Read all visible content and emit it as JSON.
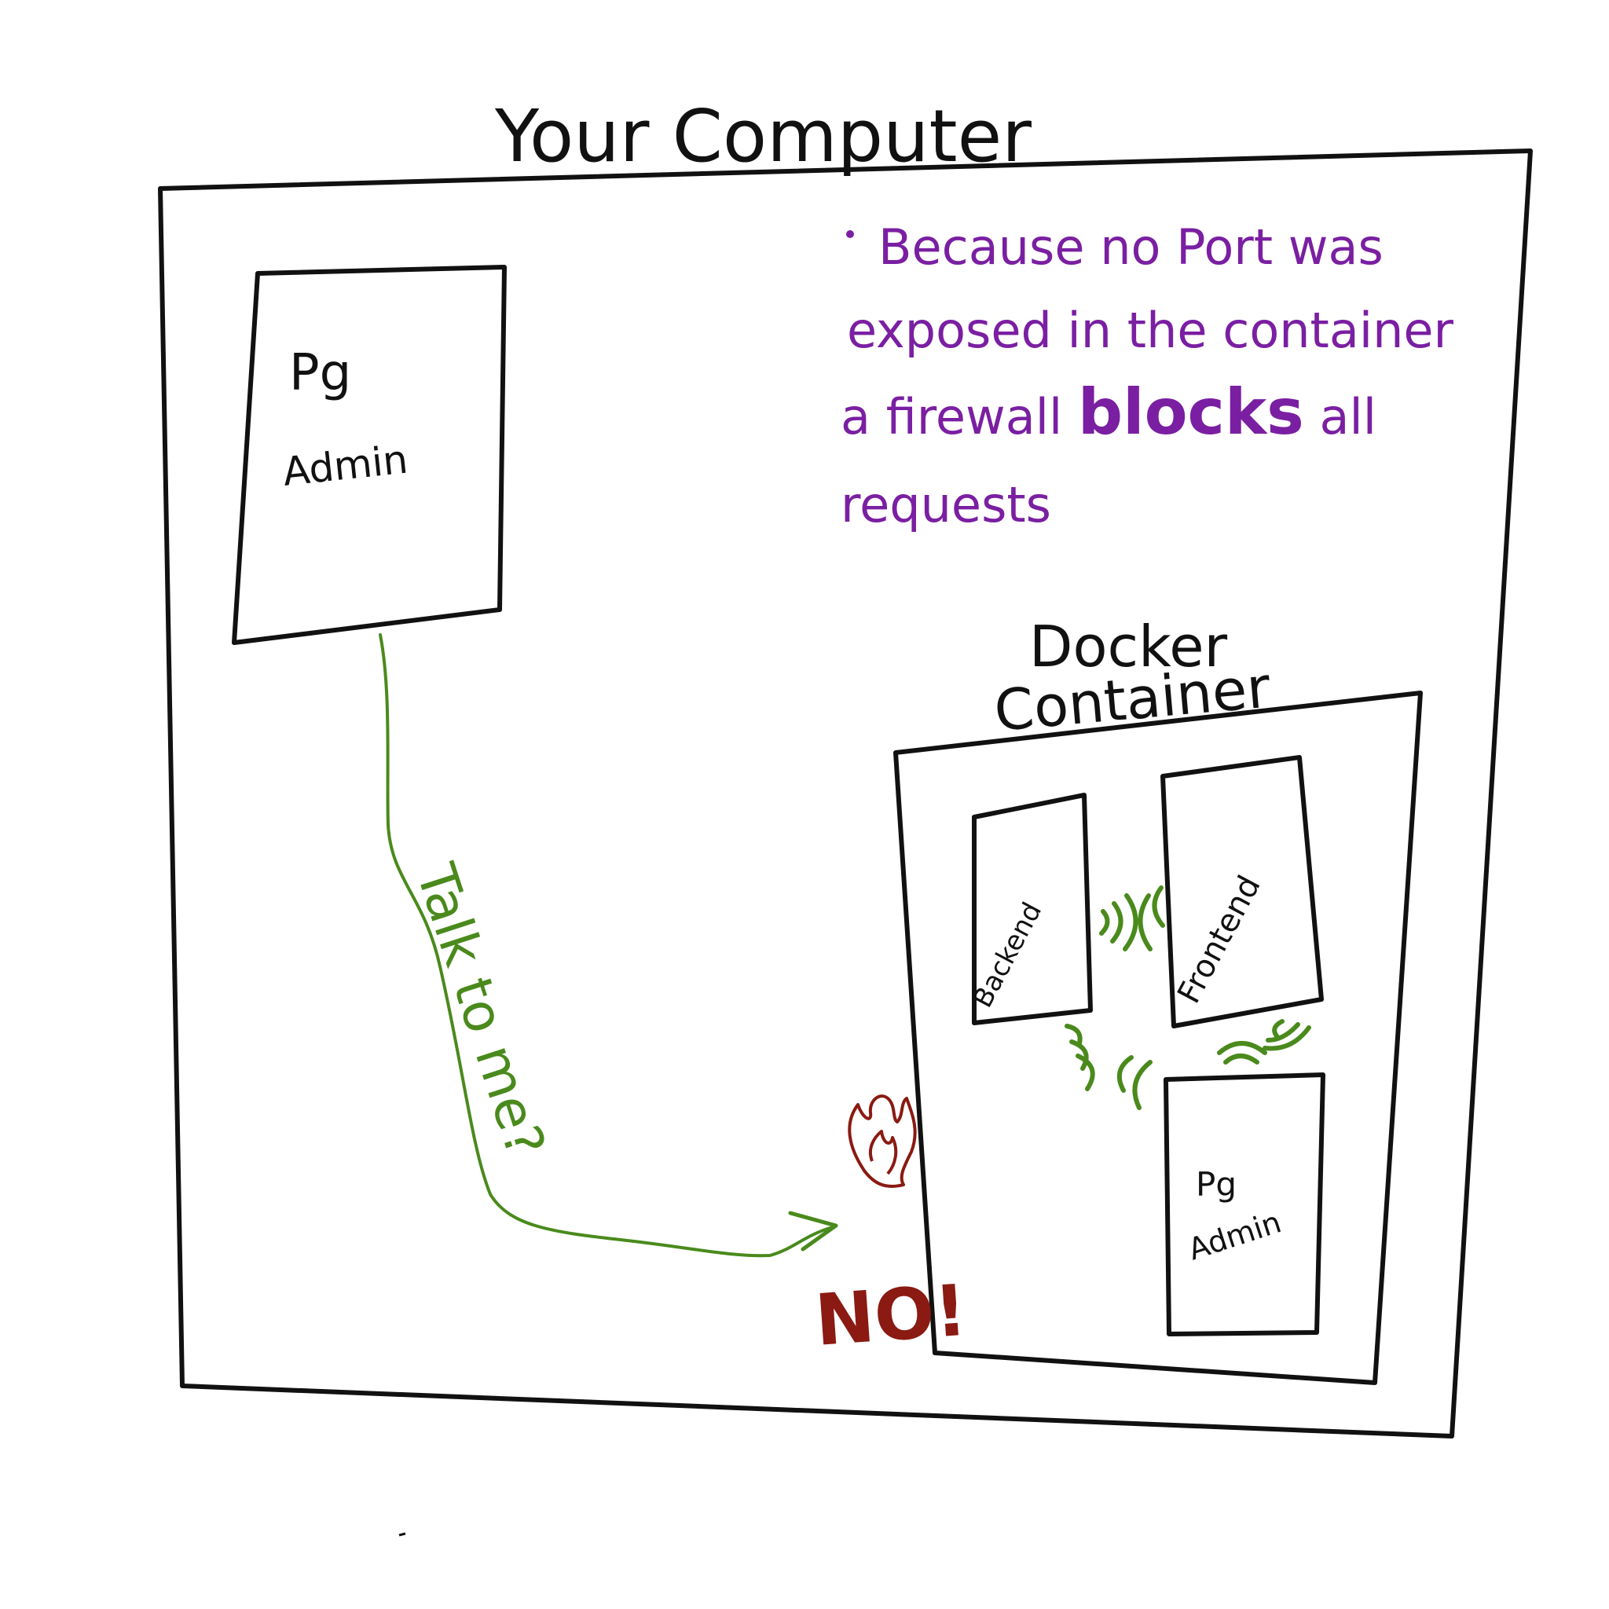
{
  "title": "Your Computer",
  "host": {
    "app_line1": "Pg",
    "app_line2": "Admin"
  },
  "note": {
    "line1": "Because no Port was",
    "line2": "exposed in the container",
    "line3_pre": "a firewall ",
    "line3_bold": "blocks",
    "line3_post": " all",
    "line4": "requests"
  },
  "request_label": "Talk to me?",
  "refusal": "NO!",
  "container": {
    "title_line1": "Docker",
    "title_line2": "Container",
    "services": {
      "backend": "Backend",
      "frontend": "Frontend",
      "pgadmin_line1": "Pg",
      "pgadmin_line2": "Admin"
    }
  },
  "colors": {
    "ink": "#111111",
    "note": "#7a1fa2",
    "arrow": "#4a8a1c",
    "warning": "#8a1a12"
  }
}
